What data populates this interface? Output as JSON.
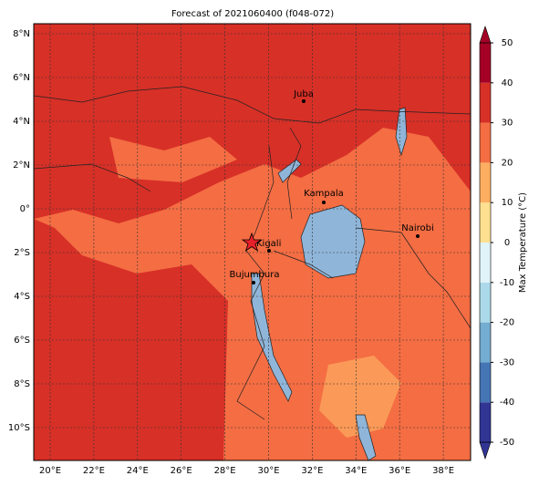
{
  "title": "Forecast of 2021060400 (f048-072)",
  "lat_labels": [
    "8°N",
    "6°N",
    "4°N",
    "2°N",
    "0°",
    "2°S",
    "4°S",
    "6°S",
    "8°S",
    "10°S"
  ],
  "lon_labels": [
    "20°E",
    "22°E",
    "24°E",
    "26°E",
    "28°E",
    "30°E",
    "32°E",
    "34°E",
    "36°E",
    "38°E"
  ],
  "cities": [
    "Juba",
    "Kampala",
    "Nairobi",
    "Kigali",
    "Bujumbura"
  ],
  "colorbar": {
    "label": "Max Temperature (°C)",
    "ticks": [
      -50,
      -40,
      -30,
      -20,
      -10,
      0,
      10,
      20,
      30,
      40,
      50
    ],
    "colors": [
      "#313695",
      "#4575b4",
      "#74add1",
      "#abd9e9",
      "#e0f3f8",
      "#fee090",
      "#fdae61",
      "#f46d43",
      "#d73027",
      "#a50026"
    ]
  }
}
